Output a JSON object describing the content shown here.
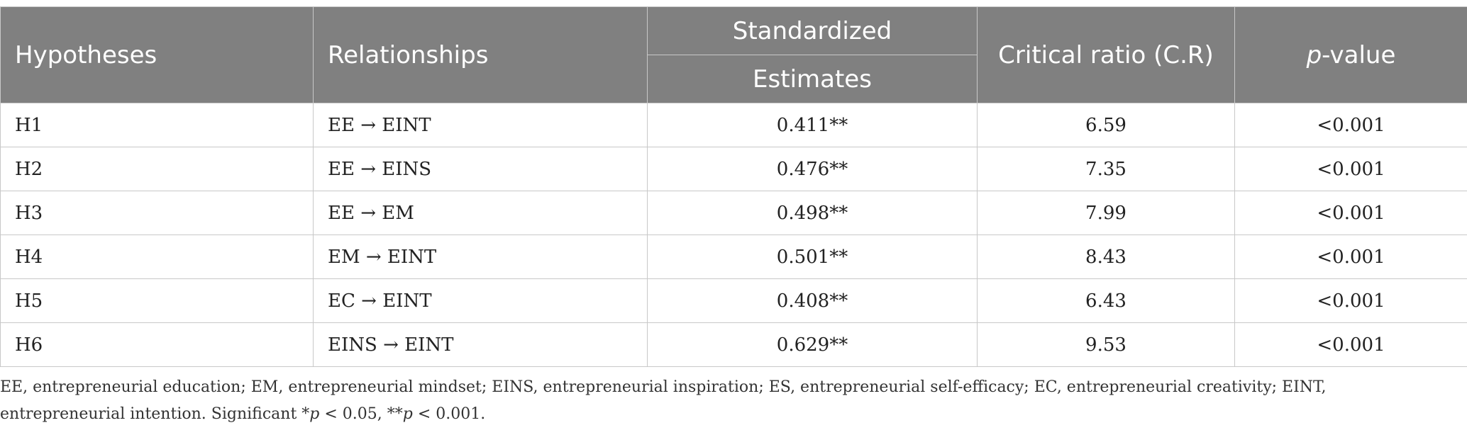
{
  "table": {
    "headers": {
      "hypotheses": "Hypotheses",
      "relationships": "Relationships",
      "standardized": "Standardized",
      "estimates": "Estimates",
      "critical_ratio": "Critical ratio (C.R)",
      "p_italic": "p",
      "p_suffix": "-value"
    },
    "rows": [
      {
        "hypothesis": "H1",
        "relationship": "EE → EINT",
        "estimate": "0.411**",
        "cr": "6.59",
        "p": "<0.001"
      },
      {
        "hypothesis": "H2",
        "relationship": "EE → EINS",
        "estimate": "0.476**",
        "cr": "7.35",
        "p": "<0.001"
      },
      {
        "hypothesis": "H3",
        "relationship": "EE → EM",
        "estimate": "0.498**",
        "cr": "7.99",
        "p": "<0.001"
      },
      {
        "hypothesis": "H4",
        "relationship": "EM → EINT",
        "estimate": "0.501**",
        "cr": "8.43",
        "p": "<0.001"
      },
      {
        "hypothesis": "H5",
        "relationship": "EC → EINT",
        "estimate": "0.408**",
        "cr": "6.43",
        "p": "<0.001"
      },
      {
        "hypothesis": "H6",
        "relationship": "EINS → EINT",
        "estimate": "0.629**",
        "cr": "9.53",
        "p": "<0.001"
      }
    ]
  },
  "footnote": {
    "definitions": "EE, entrepreneurial education; EM, entrepreneurial mindset; EINS, entrepreneurial inspiration; ES, entrepreneurial self-efficacy; EC, entrepreneurial creativity; EINT, entrepreneurial intention.",
    "sig_prefix": "Significant *",
    "p1": "p",
    "sig_mid": " < 0.05, **",
    "p2": "p",
    "sig_end": " < 0.001."
  },
  "colors": {
    "header_bg": "#808080",
    "header_text": "#ffffff",
    "grid": "#c8c8c8"
  }
}
